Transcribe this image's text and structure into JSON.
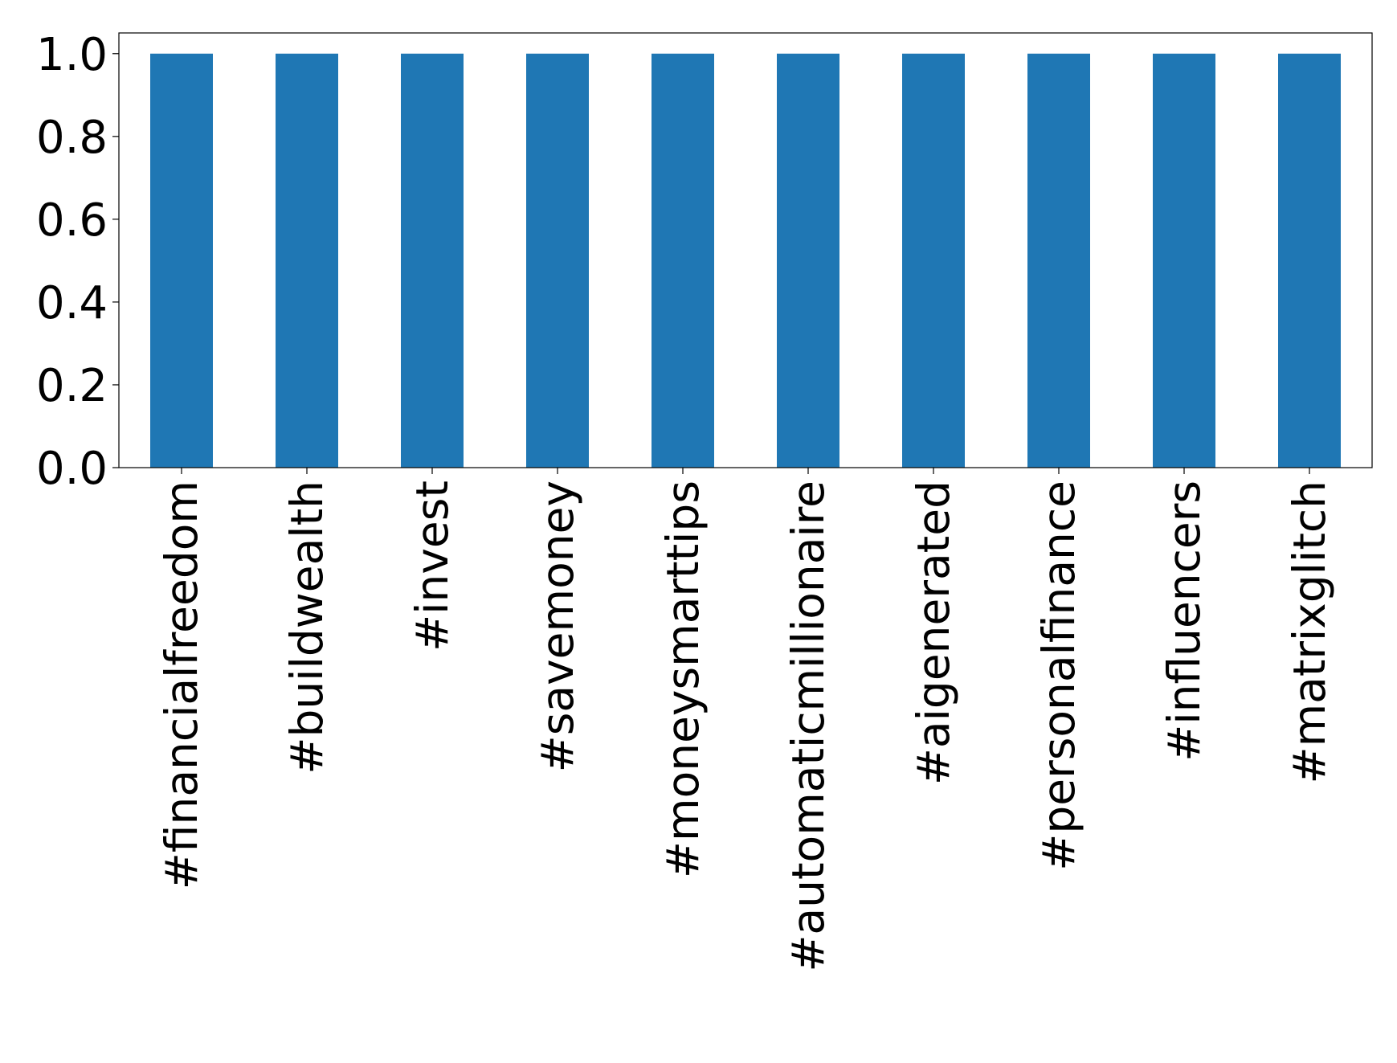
{
  "chart_data": {
    "type": "bar",
    "categories": [
      "#financialfreedom",
      "#buildwealth",
      "#invest",
      "#savemoney",
      "#moneysmarttips",
      "#automaticmillionaire",
      "#aigenerated",
      "#personalfinance",
      "#influencers",
      "#matrixglitch"
    ],
    "values": [
      1,
      1,
      1,
      1,
      1,
      1,
      1,
      1,
      1,
      1
    ],
    "color": "#1f77b4",
    "ylim": [
      0,
      1.05
    ],
    "yticks": [
      {
        "value": 0,
        "label": "0.0"
      },
      {
        "value": 0.2,
        "label": "0.2"
      },
      {
        "value": 0.4,
        "label": "0.4"
      },
      {
        "value": 0.6,
        "label": "0.6"
      },
      {
        "value": 0.8,
        "label": "0.8"
      },
      {
        "value": 1,
        "label": "1.0"
      }
    ],
    "grid": false
  }
}
